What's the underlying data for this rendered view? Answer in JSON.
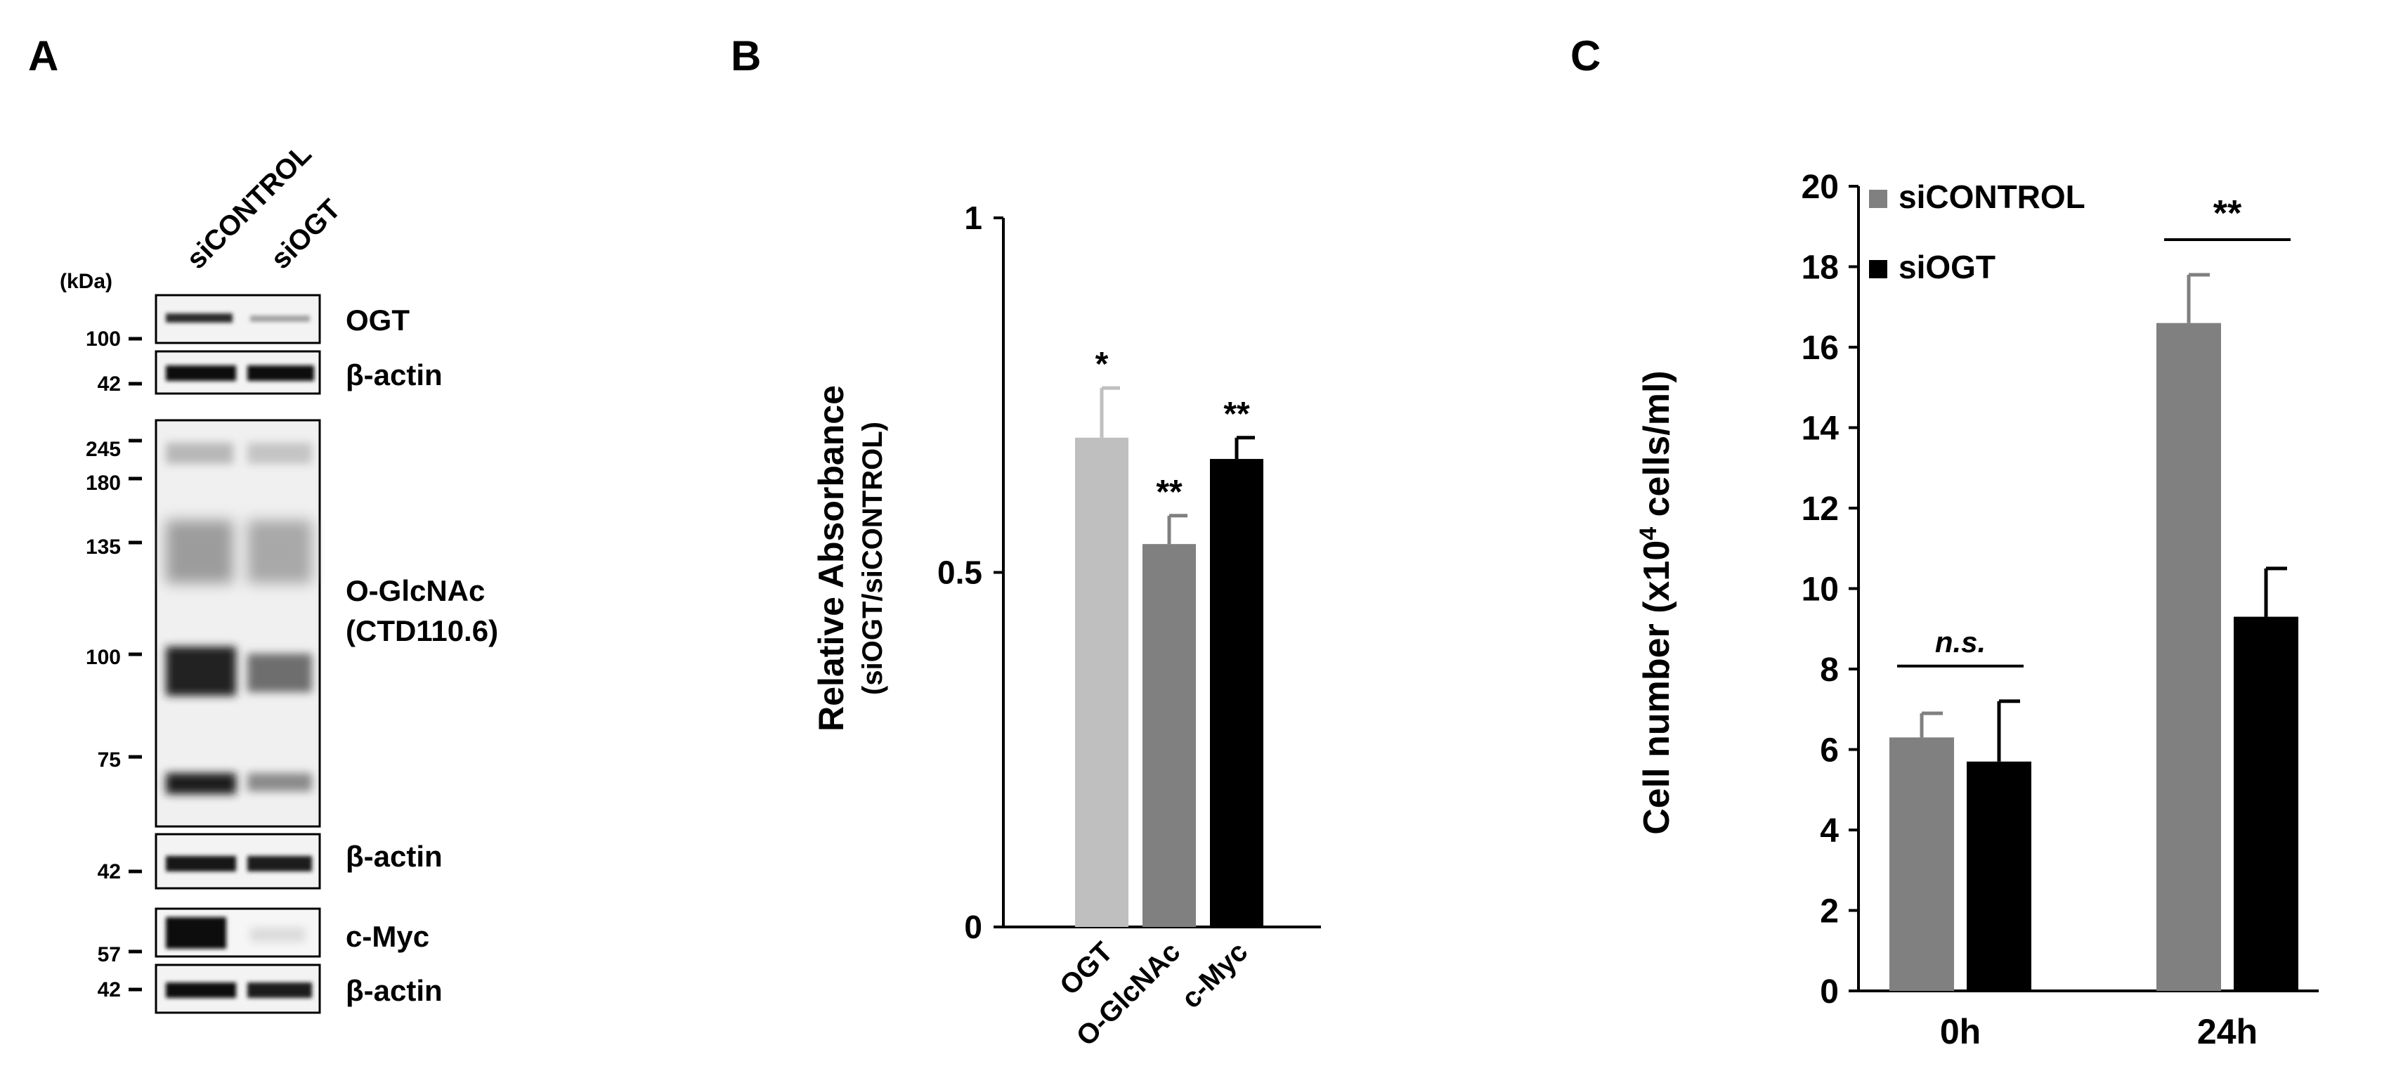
{
  "panels": {
    "a": {
      "letter": "A"
    },
    "b": {
      "letter": "B"
    },
    "c": {
      "letter": "C"
    }
  },
  "blot": {
    "lane_labels": [
      "siCONTROL",
      "siOGT"
    ],
    "kda_label": "(kDa)",
    "markers": {
      "ogt": [
        "100"
      ],
      "actin1": [
        "42"
      ],
      "oglcnac": [
        "245",
        "180",
        "135",
        "100",
        "75"
      ],
      "actin2": [
        "42"
      ],
      "cmyc": [
        "57"
      ],
      "actin3": [
        "42"
      ]
    },
    "bands": {
      "ogt": "OGT",
      "actin1": "β-actin",
      "oglcnac_line1": "O-GlcNAc",
      "oglcnac_line2": "(CTD110.6)",
      "actin2": "β-actin",
      "cmyc": "c-Myc",
      "actin3": "β-actin"
    }
  },
  "chart_data": [
    {
      "type": "bar",
      "panel": "B",
      "categories": [
        "OGT",
        "O-GlcNAc",
        "c-Myc"
      ],
      "values": [
        0.69,
        0.54,
        0.66
      ],
      "errors": [
        0.07,
        0.04,
        0.03
      ],
      "significance": [
        "*",
        "**",
        "**"
      ],
      "colors": [
        "#bfbfbf",
        "#808080",
        "#000000"
      ],
      "ylabel_line1": "Relative Absorbance",
      "ylabel_line2": "(siOGT/siCONTROL)",
      "ylim": [
        0,
        1
      ],
      "yticks": [
        "0",
        "0.5",
        "1"
      ],
      "ytick_values": [
        0,
        0.5,
        1
      ]
    },
    {
      "type": "bar",
      "panel": "C",
      "categories": [
        "0h",
        "24h"
      ],
      "series": [
        {
          "name": "siCONTROL",
          "values": [
            6.3,
            16.6
          ],
          "errors": [
            0.6,
            1.2
          ],
          "color": "#808080"
        },
        {
          "name": "siOGT",
          "values": [
            5.7,
            9.3
          ],
          "errors": [
            1.5,
            1.2
          ],
          "color": "#000000"
        }
      ],
      "significance": [
        "n.s.",
        "**"
      ],
      "ylabel_main": "Cell number (x10",
      "ylabel_sup": "4",
      "ylabel_tail": " cells/ml)",
      "ylim": [
        0,
        20
      ],
      "yticks": [
        "0",
        "2",
        "4",
        "6",
        "8",
        "10",
        "12",
        "14",
        "16",
        "18",
        "20"
      ],
      "ytick_values": [
        0,
        2,
        4,
        6,
        8,
        10,
        12,
        14,
        16,
        18,
        20
      ],
      "legend_position": "top-left"
    }
  ]
}
